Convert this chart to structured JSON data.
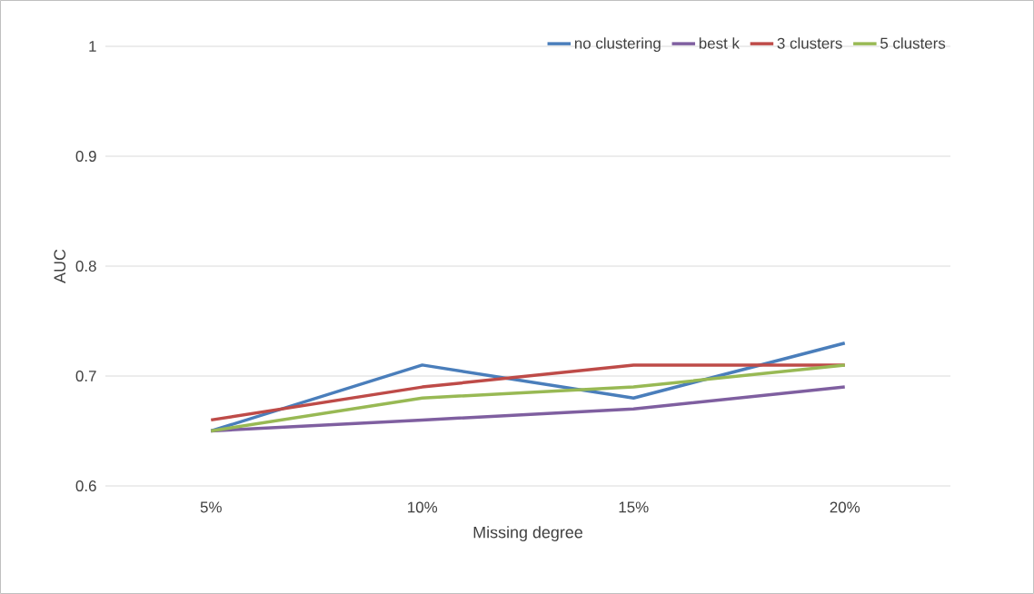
{
  "chart_data": {
    "type": "line",
    "xlabel": "Missing degree",
    "ylabel": "AUC",
    "categories": [
      "5%",
      "10%",
      "15%",
      "20%"
    ],
    "series": [
      {
        "name": "no clustering",
        "color": "#4a7ebb",
        "values": [
          0.65,
          0.71,
          0.68,
          0.73
        ]
      },
      {
        "name": "best k",
        "color": "#7f5fa0",
        "values": [
          0.65,
          0.66,
          0.67,
          0.69
        ]
      },
      {
        "name": "3 clusters",
        "color": "#be4b48",
        "values": [
          0.66,
          0.69,
          0.71,
          0.71
        ]
      },
      {
        "name": "5 clusters",
        "color": "#98b954",
        "values": [
          0.65,
          0.68,
          0.69,
          0.71
        ]
      }
    ],
    "ylim": [
      0.6,
      1
    ],
    "yticks": [
      0.6,
      0.7,
      0.8,
      0.9,
      1
    ],
    "grid": "y",
    "legend": "top right",
    "marker": "none",
    "line_style": "solid"
  }
}
